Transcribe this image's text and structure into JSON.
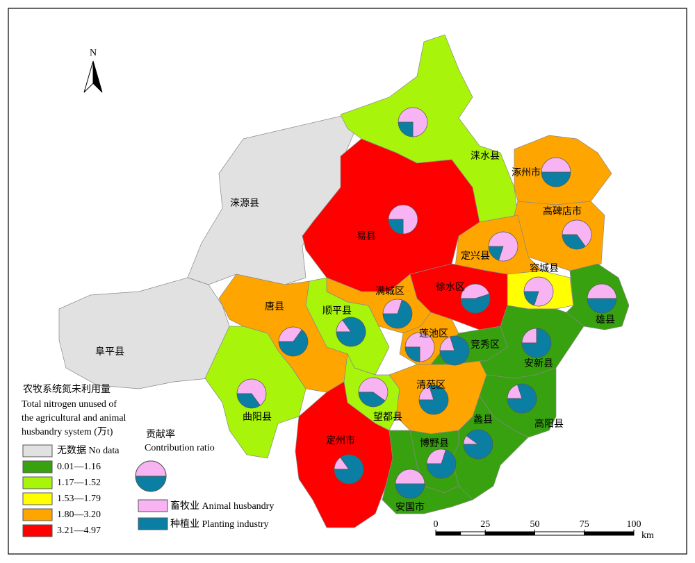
{
  "north": "N",
  "legend": {
    "title": "农牧系统氮未利用量",
    "title_en": [
      "Total nitrogen unused of",
      "the agricultural and animal",
      "husbandry system (万t)"
    ],
    "classes": [
      {
        "label": "无数据 No data",
        "color": "#e1e1e1"
      },
      {
        "label": "0.01—1.16",
        "color": "#38a10f"
      },
      {
        "label": "1.17—1.52",
        "color": "#a8f40a"
      },
      {
        "label": "1.53—1.79",
        "color": "#ffff00"
      },
      {
        "label": "1.80—3.20",
        "color": "#ffa500"
      },
      {
        "label": "3.21—4.97",
        "color": "#ff0000"
      }
    ]
  },
  "pie_legend": {
    "title": "贡献率",
    "title_en": "Contribution ratio",
    "items": [
      {
        "label": "畜牧业 Animal husbandry",
        "color": "#f7b3f2"
      },
      {
        "label": "种植业 Planting industry",
        "color": "#0a7fa3"
      }
    ]
  },
  "scale_bar": {
    "ticks": [
      0,
      25,
      50,
      75,
      100
    ],
    "unit": "km",
    "xlim": [
      0,
      100
    ]
  },
  "counties": [
    {
      "name": "涞源县",
      "class": 0
    },
    {
      "name": "阜平县",
      "class": 0
    },
    {
      "name": "涞水县",
      "class": 2,
      "animal": 75,
      "planting": 25
    },
    {
      "name": "易县",
      "class": 5,
      "animal": 75,
      "planting": 25
    },
    {
      "name": "涿州市",
      "class": 4,
      "animal": 50,
      "planting": 50
    },
    {
      "name": "高碑店市",
      "class": 4,
      "animal": 65,
      "planting": 35
    },
    {
      "name": "定兴县",
      "class": 4,
      "animal": 80,
      "planting": 20
    },
    {
      "name": "容城县",
      "class": 3,
      "animal": 80,
      "planting": 20
    },
    {
      "name": "雄县",
      "class": 1,
      "animal": 50,
      "planting": 50
    },
    {
      "name": "徐水区",
      "class": 5,
      "animal": 45,
      "planting": 55
    },
    {
      "name": "满城区",
      "class": 4,
      "animal": 30,
      "planting": 70
    },
    {
      "name": "顺平县",
      "class": 2,
      "animal": 15,
      "planting": 85
    },
    {
      "name": "唐县",
      "class": 4,
      "animal": 35,
      "planting": 65
    },
    {
      "name": "曲阳县",
      "class": 2,
      "animal": 65,
      "planting": 35
    },
    {
      "name": "望都县",
      "class": 2,
      "animal": 60,
      "planting": 40
    },
    {
      "name": "定州市",
      "class": 5,
      "animal": 15,
      "planting": 85
    },
    {
      "name": "清苑区",
      "class": 4,
      "animal": 20,
      "planting": 80
    },
    {
      "name": "莲池区",
      "class": 4,
      "animal": 75,
      "planting": 25
    },
    {
      "name": "竞秀区",
      "class": 1,
      "animal": 20,
      "planting": 80
    },
    {
      "name": "安新县",
      "class": 1,
      "animal": 25,
      "planting": 75
    },
    {
      "name": "高阳县",
      "class": 1,
      "animal": 20,
      "planting": 80
    },
    {
      "name": "蠡县",
      "class": 1,
      "animal": 10,
      "planting": 90
    },
    {
      "name": "博野县",
      "class": 1,
      "animal": 30,
      "planting": 70
    },
    {
      "name": "安国市",
      "class": 1,
      "animal": 50,
      "planting": 50
    }
  ]
}
